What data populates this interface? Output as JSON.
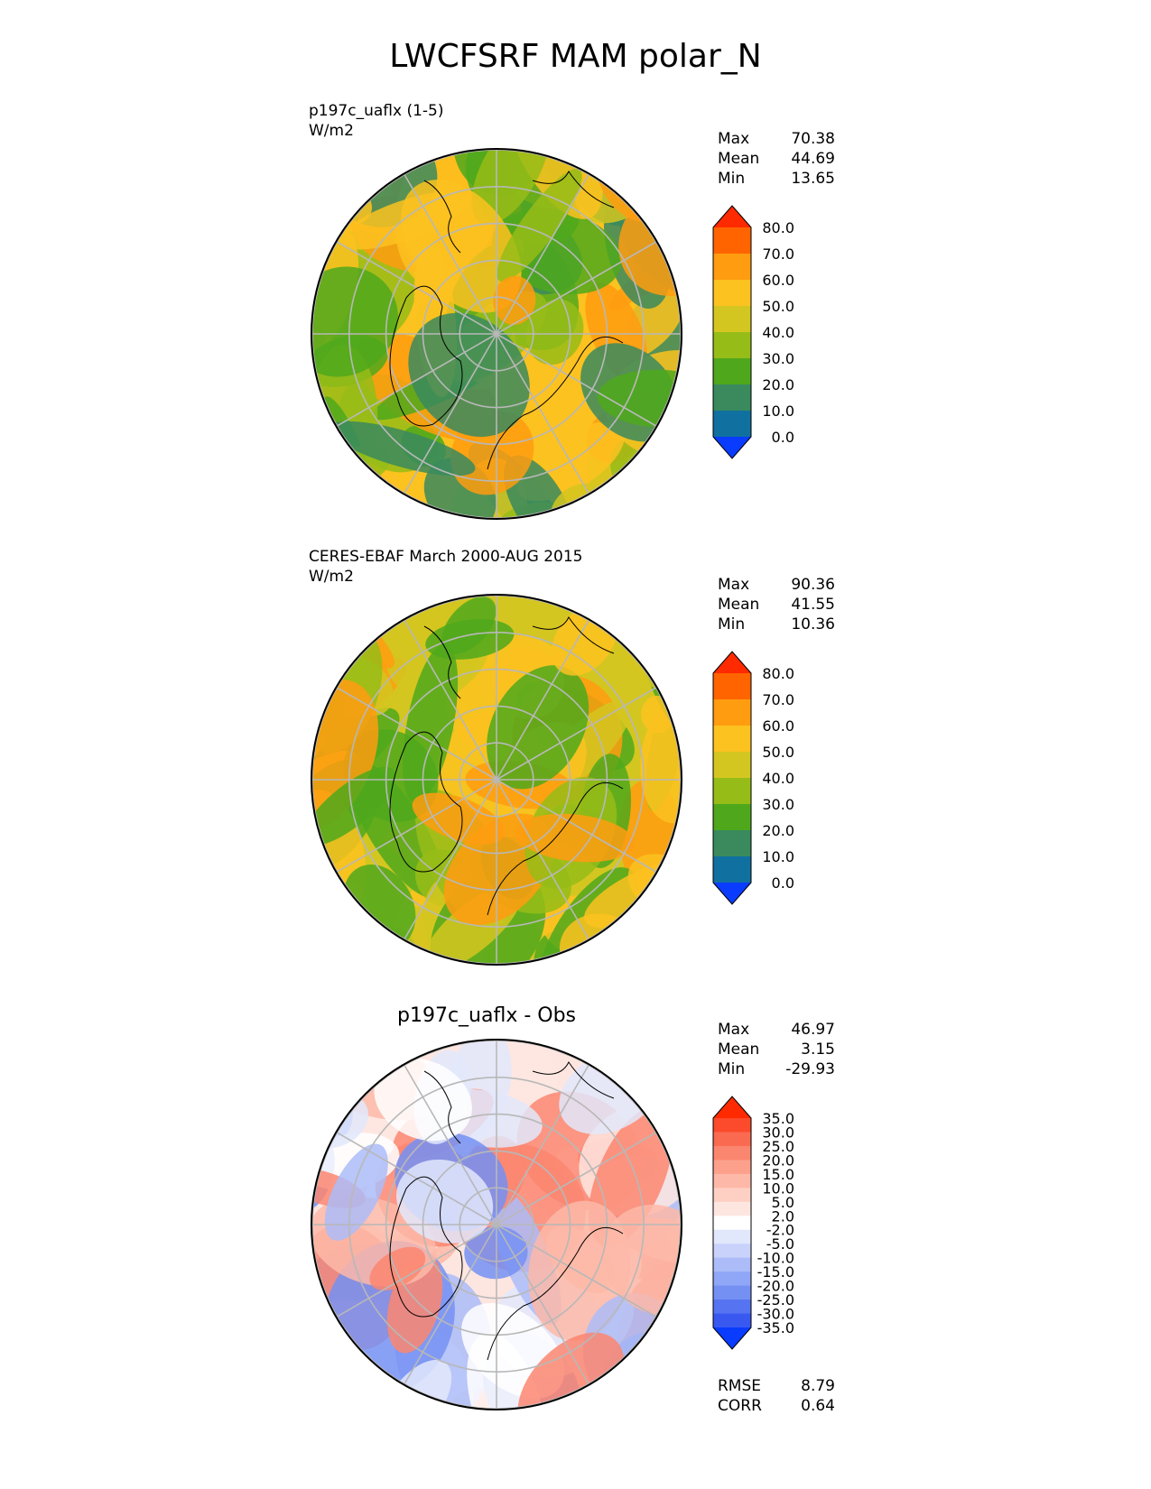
{
  "title": "LWCFSRF MAM polar_N",
  "panels": [
    {
      "title": "p197c_uaflx (1-5)",
      "units": "W/m2",
      "stats": [
        {
          "label": "Max",
          "value": "70.38"
        },
        {
          "label": "Mean",
          "value": "44.69"
        },
        {
          "label": "Min",
          "value": "13.65"
        }
      ]
    },
    {
      "title": "CERES-EBAF March 2000-AUG 2015",
      "units": "W/m2",
      "stats": [
        {
          "label": "Max",
          "value": "90.36"
        },
        {
          "label": "Mean",
          "value": "41.55"
        },
        {
          "label": "Min",
          "value": "10.36"
        }
      ]
    },
    {
      "title": "p197c_uaflx - Obs",
      "stats": [
        {
          "label": "Max",
          "value": "46.97"
        },
        {
          "label": "Mean",
          "value": "3.15"
        },
        {
          "label": "Min",
          "value": "-29.93"
        }
      ],
      "metrics": [
        {
          "label": "RMSE",
          "value": "8.79"
        },
        {
          "label": "CORR",
          "value": "0.64"
        }
      ]
    }
  ],
  "colorbars": {
    "absolute": {
      "labels": [
        "80.0",
        "70.0",
        "60.0",
        "50.0",
        "40.0",
        "30.0",
        "20.0",
        "10.0",
        "0.0"
      ],
      "colors": [
        "#ff2a00",
        "#ff6400",
        "#ff9c10",
        "#fcc220",
        "#d4c620",
        "#96bc18",
        "#4fa81c",
        "#3a8a5e",
        "#1070a0",
        "#0a3cff"
      ]
    },
    "difference": {
      "labels": [
        "35.0",
        "30.0",
        "25.0",
        "20.0",
        "15.0",
        "10.0",
        "5.0",
        "2.0",
        "-2.0",
        "-5.0",
        "-10.0",
        "-15.0",
        "-20.0",
        "-25.0",
        "-30.0",
        "-35.0"
      ],
      "colors": [
        "#ff2a00",
        "#fb4a2c",
        "#fa6a50",
        "#fb8670",
        "#fca08c",
        "#fdb8a8",
        "#fed0c4",
        "#fee6e0",
        "#ffffff",
        "#e2e8fb",
        "#c8d2fb",
        "#acbcf8",
        "#90a6f6",
        "#7490f3",
        "#5674f1",
        "#3858f0",
        "#0a3cff"
      ]
    },
    "map_palettes": {
      "model": [
        "#fcc220",
        "#d4c620",
        "#96bc18",
        "#4fa81c",
        "#ff9c10",
        "#3a8a5e"
      ],
      "obs": [
        "#fcc220",
        "#d4c620",
        "#96bc18",
        "#4fa81c",
        "#ff9c10"
      ],
      "diff": [
        "#fee6e0",
        "#fdb8a8",
        "#fb8670",
        "#ffffff",
        "#e2e8fb",
        "#acbcf8",
        "#7490f3"
      ]
    }
  }
}
